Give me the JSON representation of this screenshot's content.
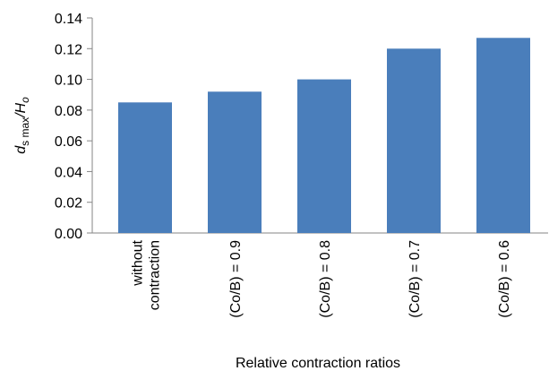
{
  "chart_data": {
    "type": "bar",
    "y_label_parts": [
      "d",
      "s max",
      "/H",
      "o"
    ],
    "x_label": "Relative contraction ratios",
    "categories": [
      "without\ncontraction",
      "(Co/B) = 0.9",
      "(Co/B) = 0.8",
      "(Co/B) = 0.7",
      "(Co/B) = 0.6"
    ],
    "values": [
      0.085,
      0.092,
      0.1,
      0.12,
      0.127
    ],
    "color": "#4a7ebb",
    "ylim": [
      0,
      0.14
    ],
    "yticks": [
      {
        "value": 0,
        "label": "0.00"
      },
      {
        "value": 0.02,
        "label": "0.02"
      },
      {
        "value": 0.04,
        "label": "0.04"
      },
      {
        "value": 0.06,
        "label": "0.06"
      },
      {
        "value": 0.08,
        "label": "0.08"
      },
      {
        "value": 0.1,
        "label": "0.10"
      },
      {
        "value": 0.12,
        "label": "0.12"
      },
      {
        "value": 0.14,
        "label": "0.14"
      }
    ],
    "grid": false
  }
}
